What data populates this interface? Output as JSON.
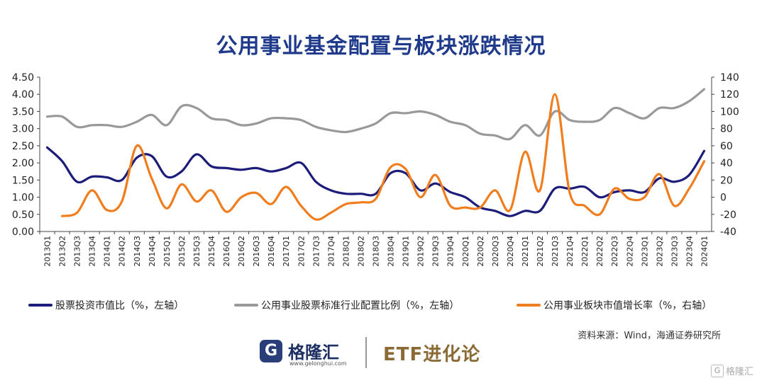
{
  "header": {
    "title": "公用事业基金配置与板块涨跌情况"
  },
  "chart_data": {
    "type": "line",
    "title": "公用事业基金配置与板块涨跌情况",
    "categories": [
      "2013Q1",
      "2013Q2",
      "2013Q3",
      "2013Q4",
      "2014Q1",
      "2014Q2",
      "2014Q3",
      "2014Q4",
      "2015Q1",
      "2015Q2",
      "2015Q3",
      "2015Q4",
      "2016Q1",
      "2016Q2",
      "2016Q3",
      "2016Q4",
      "2017Q1",
      "2017Q2",
      "2017Q3",
      "2017Q4",
      "2018Q1",
      "2018Q2",
      "2018Q3",
      "2018Q4",
      "2019Q1",
      "2019Q2",
      "2019Q3",
      "2019Q4",
      "2020Q1",
      "2020Q2",
      "2020Q3",
      "2020Q4",
      "2021Q1",
      "2021Q2",
      "2021Q3",
      "2021Q4",
      "2022Q1",
      "2022Q2",
      "2022Q3",
      "2022Q4",
      "2023Q1",
      "2023Q2",
      "2023Q3",
      "2023Q4",
      "2024Q1"
    ],
    "y_left": {
      "min": 0,
      "max": 4.5,
      "step": 0.5,
      "ticks": [
        "0.00",
        "0.50",
        "1.00",
        "1.50",
        "2.00",
        "2.50",
        "3.00",
        "3.50",
        "4.00",
        "4.50"
      ]
    },
    "y_right": {
      "min": -40,
      "max": 140,
      "step": 20,
      "ticks": [
        "-40",
        "-20",
        "0",
        "20",
        "40",
        "60",
        "80",
        "100",
        "120",
        "140"
      ]
    },
    "series": [
      {
        "name": "股票投资市值比（%，左轴）",
        "axis": "left",
        "color": "#1c1c7a",
        "values": [
          2.45,
          2.05,
          1.45,
          1.6,
          1.58,
          1.5,
          2.15,
          2.2,
          1.6,
          1.75,
          2.25,
          1.9,
          1.85,
          1.8,
          1.85,
          1.75,
          1.85,
          2.0,
          1.45,
          1.2,
          1.1,
          1.1,
          1.1,
          1.7,
          1.7,
          1.2,
          1.4,
          1.15,
          1.0,
          0.7,
          0.6,
          0.45,
          0.6,
          0.6,
          1.25,
          1.25,
          1.3,
          1.0,
          1.15,
          1.2,
          1.15,
          1.55,
          1.45,
          1.65,
          2.35
        ]
      },
      {
        "name": "公用事业股票标准行业配置比例（%，左轴）",
        "axis": "left",
        "color": "#999999",
        "values": [
          3.35,
          3.35,
          3.05,
          3.1,
          3.1,
          3.05,
          3.2,
          3.4,
          3.1,
          3.65,
          3.6,
          3.3,
          3.25,
          3.1,
          3.15,
          3.3,
          3.3,
          3.25,
          3.05,
          2.95,
          2.9,
          3.0,
          3.15,
          3.45,
          3.45,
          3.5,
          3.4,
          3.2,
          3.1,
          2.85,
          2.8,
          2.7,
          3.1,
          2.8,
          3.5,
          3.25,
          3.2,
          3.25,
          3.6,
          3.45,
          3.3,
          3.6,
          3.6,
          3.8,
          4.15
        ]
      },
      {
        "name": "公用事业板块市值增长率（%，右轴）",
        "axis": "right",
        "color": "#f07d1e",
        "values": [
          null,
          -22,
          -18,
          8,
          -15,
          -5,
          60,
          22,
          -13,
          15,
          -5,
          8,
          -17,
          0,
          5,
          -8,
          12,
          -10,
          -26,
          -18,
          -8,
          -6,
          -2,
          35,
          33,
          0,
          26,
          -10,
          -12,
          -12,
          8,
          -15,
          53,
          8,
          120,
          5,
          -10,
          -20,
          10,
          -2,
          0,
          27,
          -10,
          10,
          42
        ]
      }
    ],
    "legend_position": "bottom",
    "grid": false
  },
  "source": "资料来源：Wind，海通证券研究所",
  "footer": {
    "logo_mark": "G",
    "logo_name": "格隆汇",
    "logo_url": "www.gelonghui.com",
    "etf_text": "ETF进化论"
  },
  "watermark": {
    "mark": "G",
    "text": "格隆汇"
  }
}
